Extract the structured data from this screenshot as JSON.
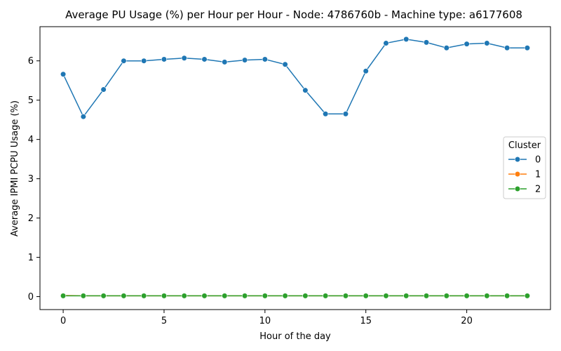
{
  "chart_data": {
    "type": "line",
    "title": "Average PU Usage (%) per Hour per Hour - Node: 4786760b - Machine type: a6177608",
    "xlabel": "Hour of the day",
    "ylabel": "Average IPMI PCPU Usage (%)",
    "x": [
      0,
      1,
      2,
      3,
      4,
      5,
      6,
      7,
      8,
      9,
      10,
      11,
      12,
      13,
      14,
      15,
      16,
      17,
      18,
      19,
      20,
      21,
      22,
      23
    ],
    "xlim": [
      -1.15,
      24.15
    ],
    "ylim": [
      -0.33,
      6.87
    ],
    "xticks": [
      0,
      5,
      10,
      15,
      20
    ],
    "yticks": [
      0,
      1,
      2,
      3,
      4,
      5,
      6
    ],
    "grid": false,
    "legend": {
      "title": "Cluster",
      "placement": "center-right"
    },
    "series": [
      {
        "name": "0",
        "color": "#1f77b4",
        "values": [
          5.66,
          4.58,
          5.27,
          6.0,
          6.0,
          6.04,
          6.07,
          6.04,
          5.97,
          6.02,
          6.04,
          5.91,
          5.25,
          4.65,
          4.65,
          5.74,
          6.45,
          6.55,
          6.47,
          6.33,
          6.43,
          6.45,
          6.33,
          6.33
        ]
      },
      {
        "name": "1",
        "color": "#ff7f0e",
        "values": [
          0.03,
          0.02,
          0.02,
          0.02,
          0.02,
          0.02,
          0.02,
          0.02,
          0.02,
          0.02,
          0.02,
          0.02,
          0.02,
          0.02,
          0.02,
          0.02,
          0.02,
          0.02,
          0.02,
          0.02,
          0.02,
          0.02,
          0.02,
          0.02
        ]
      },
      {
        "name": "2",
        "color": "#2ca02c",
        "values": [
          0.02,
          0.02,
          0.02,
          0.02,
          0.02,
          0.02,
          0.02,
          0.02,
          0.02,
          0.02,
          0.02,
          0.02,
          0.02,
          0.02,
          0.02,
          0.02,
          0.02,
          0.02,
          0.02,
          0.02,
          0.02,
          0.02,
          0.02,
          0.02
        ]
      }
    ]
  }
}
